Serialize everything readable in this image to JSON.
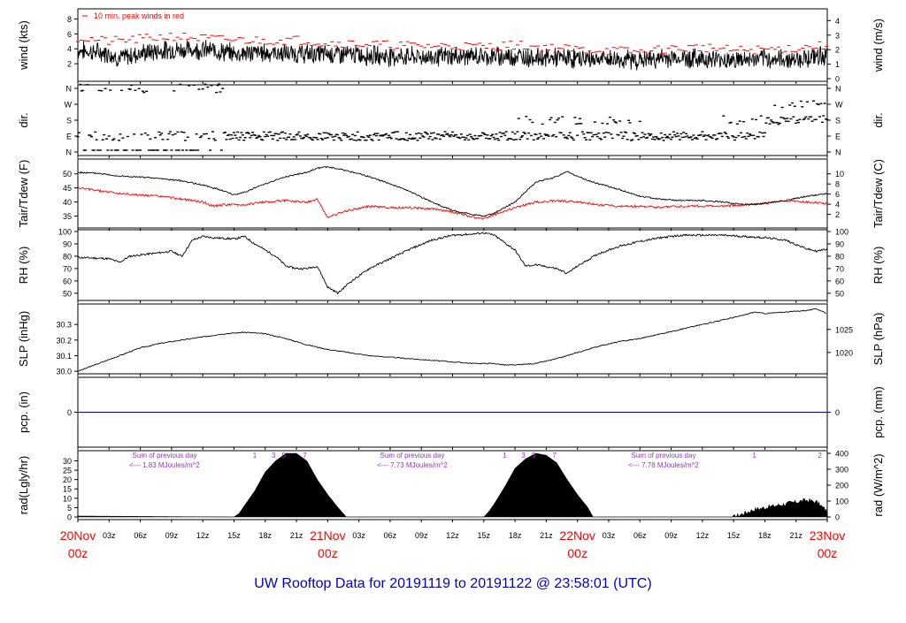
{
  "title": "UW Rooftop Data for 20191119  to  20191122 @ 23:58:01  (UTC)",
  "colors": {
    "title": "#0000cc",
    "day_labels": "#ff0000",
    "peak": "#ff0000",
    "dewpoint": "#ff0000",
    "precip_line": "#0000cc",
    "annotation": "#9933cc",
    "trace": "#000000"
  },
  "time_axis": {
    "hours_total": 72,
    "hour_ticks": [
      "03z",
      "06z",
      "09z",
      "12z",
      "15z",
      "18z",
      "21z"
    ],
    "days": [
      {
        "date": "20Nov",
        "hour": "00z"
      },
      {
        "date": "21Nov",
        "hour": "00z"
      },
      {
        "date": "22Nov",
        "hour": "00z"
      },
      {
        "date": "23Nov",
        "hour": "00z"
      }
    ]
  },
  "panels": {
    "wind": {
      "left_label": "wind (kts)",
      "right_label": "wind (m/s)",
      "left_ticks": [
        "2",
        "4",
        "6",
        "8"
      ],
      "right_ticks": [
        "0",
        "1",
        "2",
        "3",
        "4"
      ],
      "legend": "10 min. peak winds in red"
    },
    "dir": {
      "left_label": "dir.",
      "right_label": "dir.",
      "ticks": [
        "N",
        "W",
        "S",
        "E",
        "N"
      ]
    },
    "temp": {
      "left_label": "Tair/Tdew (F)",
      "right_label": "Tair/Tdew (C)",
      "left_ticks": [
        "35",
        "40",
        "45",
        "50"
      ],
      "right_ticks": [
        "4",
        "6",
        "8",
        "10"
      ],
      "extra_right_tick": "2"
    },
    "rh": {
      "left_label": "RH (%)",
      "right_label": "RH (%)",
      "ticks": [
        "50",
        "60",
        "70",
        "80",
        "90",
        "100"
      ]
    },
    "slp": {
      "left_label": "SLP (inHg)",
      "right_label": "SLP (hPa)",
      "left_ticks": [
        "30.0",
        "30.1",
        "30.2",
        "30.3"
      ],
      "right_ticks": [
        "1020",
        "1025"
      ]
    },
    "pcp": {
      "left_label": "pcp. (in)",
      "right_label": "pcp. (mm)",
      "left_ticks": [
        "0"
      ],
      "right_ticks": [
        "0"
      ]
    },
    "rad": {
      "left_label": "rad(Lgly/hr)",
      "right_label": "rad (W/m^2)",
      "left_ticks": [
        "0",
        "5",
        "10",
        "15",
        "20",
        "25",
        "30"
      ],
      "right_ticks": [
        "0",
        "100",
        "200",
        "300",
        "400"
      ],
      "notes": [
        {
          "line1": "Sum of previous day",
          "line2": "<--- 1.83 MJoules/m^2"
        },
        {
          "line1": "Sum of previous day",
          "line2": "<--- 7.73 MJoules/m^2"
        },
        {
          "line1": "Sum of previous day",
          "line2": "<--- 7.78 MJoules/m^2"
        }
      ],
      "uv_marks": [
        {
          "hour": 17,
          "label": "1"
        },
        {
          "hour": 18.8,
          "label": "3"
        },
        {
          "hour": 19.8,
          "label": "5"
        },
        {
          "hour": 21.8,
          "label": "7"
        },
        {
          "hour": 41,
          "label": "1"
        },
        {
          "hour": 42.8,
          "label": "3"
        },
        {
          "hour": 43.8,
          "label": "5"
        },
        {
          "hour": 45.8,
          "label": "7"
        },
        {
          "hour": 65,
          "label": "1"
        },
        {
          "hour": 71.3,
          "label": "2"
        }
      ]
    }
  },
  "chart_data": {
    "type": "line",
    "x_unit": "hours since 20Nov 00z",
    "series": [
      {
        "key": "wind_mean",
        "unit": "kts",
        "values": [
          [
            0,
            3.8
          ],
          [
            3,
            3.4
          ],
          [
            4,
            2.7
          ],
          [
            6,
            3.4
          ],
          [
            9,
            3.9
          ],
          [
            12,
            3.9
          ],
          [
            14,
            3.6
          ],
          [
            15,
            3.4
          ],
          [
            18,
            3.5
          ],
          [
            21,
            3.3
          ],
          [
            24,
            3.3
          ],
          [
            27,
            3.2
          ],
          [
            30,
            3.0
          ],
          [
            33,
            2.9
          ],
          [
            36,
            3.0
          ],
          [
            39,
            3.0
          ],
          [
            42,
            3.0
          ],
          [
            45,
            2.8
          ],
          [
            48,
            2.7
          ],
          [
            51,
            2.6
          ],
          [
            54,
            2.5
          ],
          [
            57,
            2.8
          ],
          [
            60,
            2.7
          ],
          [
            63,
            2.5
          ],
          [
            66,
            2.6
          ],
          [
            69,
            2.6
          ],
          [
            72,
            3.2
          ]
        ]
      },
      {
        "key": "wind_peak",
        "unit": "kts",
        "values": [
          [
            0,
            5.5
          ],
          [
            3,
            5.0
          ],
          [
            6,
            5.3
          ],
          [
            9,
            5.7
          ],
          [
            12,
            5.4
          ],
          [
            15,
            5.2
          ],
          [
            18,
            5.1
          ],
          [
            21,
            5.2
          ],
          [
            24,
            4.8
          ],
          [
            27,
            4.7
          ],
          [
            30,
            4.5
          ],
          [
            33,
            4.4
          ],
          [
            36,
            4.4
          ],
          [
            39,
            4.3
          ],
          [
            42,
            4.5
          ],
          [
            45,
            4.2
          ],
          [
            48,
            3.9
          ],
          [
            51,
            3.8
          ],
          [
            54,
            3.6
          ],
          [
            57,
            4.0
          ],
          [
            60,
            4.2
          ],
          [
            63,
            3.8
          ],
          [
            66,
            3.9
          ],
          [
            69,
            4.1
          ],
          [
            72,
            4.5
          ]
        ]
      },
      {
        "key": "direction",
        "unit": "compass",
        "values": [
          [
            0,
            "N/E"
          ],
          [
            14,
            "E"
          ],
          [
            24,
            "E"
          ],
          [
            36,
            "E"
          ],
          [
            42,
            "E/S"
          ],
          [
            48,
            "S/E"
          ],
          [
            60,
            "E"
          ],
          [
            66,
            "S/W"
          ],
          [
            72,
            "E"
          ]
        ]
      },
      {
        "key": "tair",
        "unit": "F",
        "values": [
          [
            0,
            50.5
          ],
          [
            2,
            50.2
          ],
          [
            4,
            49.2
          ],
          [
            6,
            48.8
          ],
          [
            8,
            48.3
          ],
          [
            10,
            47.5
          ],
          [
            12,
            46.0
          ],
          [
            14,
            44.0
          ],
          [
            15,
            42.5
          ],
          [
            16,
            43.5
          ],
          [
            18,
            46.5
          ],
          [
            20,
            49.0
          ],
          [
            22,
            50.5
          ],
          [
            23,
            52.0
          ],
          [
            24,
            52.5
          ],
          [
            26,
            51.0
          ],
          [
            28,
            49.0
          ],
          [
            30,
            46.5
          ],
          [
            32,
            43.5
          ],
          [
            34,
            40.0
          ],
          [
            36,
            37.0
          ],
          [
            38,
            35.5
          ],
          [
            39,
            35.0
          ],
          [
            40,
            36.0
          ],
          [
            42,
            40.0
          ],
          [
            44,
            47.0
          ],
          [
            46,
            49.0
          ],
          [
            47,
            51.0
          ],
          [
            48,
            49.0
          ],
          [
            50,
            46.5
          ],
          [
            52,
            44.5
          ],
          [
            54,
            42.0
          ],
          [
            56,
            41.0
          ],
          [
            58,
            40.5
          ],
          [
            60,
            40.5
          ],
          [
            62,
            40.0
          ],
          [
            64,
            39.0
          ],
          [
            66,
            39.5
          ],
          [
            68,
            40.5
          ],
          [
            70,
            42.0
          ],
          [
            72,
            43.0
          ]
        ]
      },
      {
        "key": "tdew",
        "unit": "F",
        "values": [
          [
            0,
            45.0
          ],
          [
            2,
            44.0
          ],
          [
            4,
            43.0
          ],
          [
            6,
            42.5
          ],
          [
            8,
            42.0
          ],
          [
            10,
            41.0
          ],
          [
            12,
            40.0
          ],
          [
            13,
            38.5
          ],
          [
            14,
            39.0
          ],
          [
            16,
            39.0
          ],
          [
            18,
            40.0
          ],
          [
            20,
            40.5
          ],
          [
            22,
            40.0
          ],
          [
            23,
            41.0
          ],
          [
            24,
            34.5
          ],
          [
            26,
            37.0
          ],
          [
            28,
            38.5
          ],
          [
            30,
            38.0
          ],
          [
            32,
            38.0
          ],
          [
            34,
            37.5
          ],
          [
            36,
            36.5
          ],
          [
            38,
            34.5
          ],
          [
            39,
            34.0
          ],
          [
            40,
            35.5
          ],
          [
            42,
            38.0
          ],
          [
            44,
            40.0
          ],
          [
            46,
            40.5
          ],
          [
            48,
            40.0
          ],
          [
            50,
            39.0
          ],
          [
            52,
            38.5
          ],
          [
            54,
            38.5
          ],
          [
            56,
            38.0
          ],
          [
            58,
            38.5
          ],
          [
            60,
            38.5
          ],
          [
            62,
            38.5
          ],
          [
            64,
            39.0
          ],
          [
            66,
            39.5
          ],
          [
            68,
            40.5
          ],
          [
            70,
            40.0
          ],
          [
            72,
            39.5
          ]
        ]
      },
      {
        "key": "rh",
        "unit": "%",
        "values": [
          [
            0,
            79
          ],
          [
            3,
            78
          ],
          [
            4,
            75
          ],
          [
            5,
            80
          ],
          [
            7,
            82
          ],
          [
            9,
            84
          ],
          [
            10,
            80
          ],
          [
            11,
            93
          ],
          [
            12,
            96
          ],
          [
            13,
            95
          ],
          [
            15,
            94
          ],
          [
            16,
            96
          ],
          [
            17,
            90
          ],
          [
            18,
            85
          ],
          [
            19,
            80
          ],
          [
            20,
            72
          ],
          [
            21,
            70
          ],
          [
            22,
            70
          ],
          [
            23,
            72
          ],
          [
            24,
            55
          ],
          [
            25,
            50
          ],
          [
            26,
            58
          ],
          [
            28,
            70
          ],
          [
            30,
            78
          ],
          [
            32,
            86
          ],
          [
            34,
            93
          ],
          [
            36,
            97
          ],
          [
            38,
            98
          ],
          [
            39,
            99
          ],
          [
            40,
            97
          ],
          [
            42,
            85
          ],
          [
            43,
            72
          ],
          [
            44,
            73
          ],
          [
            46,
            70
          ],
          [
            47,
            66
          ],
          [
            48,
            72
          ],
          [
            50,
            82
          ],
          [
            52,
            88
          ],
          [
            54,
            92
          ],
          [
            56,
            95
          ],
          [
            58,
            97
          ],
          [
            60,
            97
          ],
          [
            62,
            97
          ],
          [
            64,
            96
          ],
          [
            66,
            95
          ],
          [
            68,
            93
          ],
          [
            70,
            86
          ],
          [
            71,
            84
          ],
          [
            72,
            86
          ]
        ]
      },
      {
        "key": "slp",
        "unit": "inHg",
        "values": [
          [
            0,
            30.0
          ],
          [
            2,
            30.05
          ],
          [
            4,
            30.1
          ],
          [
            6,
            30.15
          ],
          [
            8,
            30.18
          ],
          [
            10,
            30.2
          ],
          [
            12,
            30.22
          ],
          [
            14,
            30.24
          ],
          [
            16,
            30.25
          ],
          [
            18,
            30.24
          ],
          [
            20,
            30.21
          ],
          [
            22,
            30.17
          ],
          [
            24,
            30.14
          ],
          [
            26,
            30.12
          ],
          [
            28,
            30.1
          ],
          [
            30,
            30.09
          ],
          [
            32,
            30.08
          ],
          [
            34,
            30.07
          ],
          [
            36,
            30.06
          ],
          [
            38,
            30.05
          ],
          [
            40,
            30.05
          ],
          [
            41,
            30.04
          ],
          [
            42,
            30.04
          ],
          [
            44,
            30.05
          ],
          [
            46,
            30.08
          ],
          [
            48,
            30.12
          ],
          [
            50,
            30.16
          ],
          [
            52,
            30.19
          ],
          [
            54,
            30.21
          ],
          [
            56,
            30.24
          ],
          [
            58,
            30.27
          ],
          [
            60,
            30.3
          ],
          [
            62,
            30.33
          ],
          [
            64,
            30.36
          ],
          [
            65,
            30.38
          ],
          [
            66,
            30.37
          ],
          [
            68,
            30.38
          ],
          [
            70,
            30.39
          ],
          [
            71,
            30.4
          ],
          [
            72,
            30.37
          ]
        ]
      },
      {
        "key": "precip",
        "unit": "in",
        "values": [
          [
            0,
            0
          ],
          [
            72,
            0
          ]
        ]
      },
      {
        "key": "radiation",
        "unit": "Lgly/hr",
        "values": [
          [
            0,
            0.5
          ],
          [
            15,
            0
          ],
          [
            15.5,
            2
          ],
          [
            16,
            6
          ],
          [
            17,
            14
          ],
          [
            18,
            24
          ],
          [
            19,
            30
          ],
          [
            20,
            34
          ],
          [
            21,
            34
          ],
          [
            22,
            30
          ],
          [
            23,
            20
          ],
          [
            24,
            12
          ],
          [
            25,
            5
          ],
          [
            25.8,
            0
          ],
          [
            39,
            0
          ],
          [
            39.5,
            3
          ],
          [
            40,
            7
          ],
          [
            41,
            16
          ],
          [
            42,
            26
          ],
          [
            43,
            31
          ],
          [
            44,
            34
          ],
          [
            45,
            33
          ],
          [
            46,
            29
          ],
          [
            47,
            20
          ],
          [
            48,
            12
          ],
          [
            49,
            5
          ],
          [
            49.5,
            0
          ],
          [
            63,
            0
          ],
          [
            64,
            2
          ],
          [
            65,
            4
          ],
          [
            66,
            5
          ],
          [
            67,
            6
          ],
          [
            68,
            7
          ],
          [
            69,
            8
          ],
          [
            70,
            9
          ],
          [
            71,
            8
          ],
          [
            72,
            3
          ]
        ]
      }
    ]
  }
}
